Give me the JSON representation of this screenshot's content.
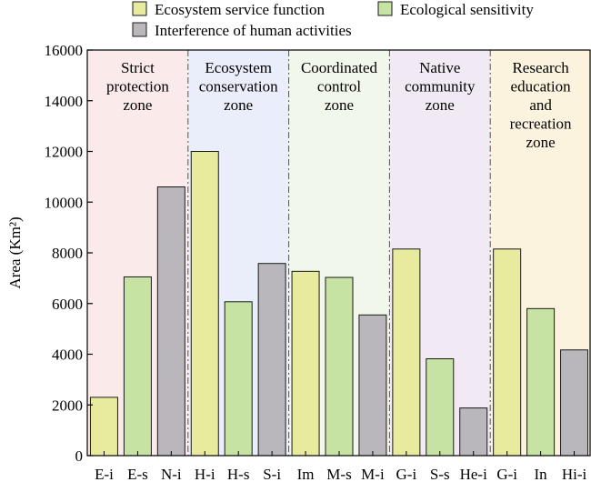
{
  "chart_data": {
    "type": "bar",
    "ylabel": "Area (Km²)",
    "ylim": [
      0,
      16000
    ],
    "yticks": [
      0,
      2000,
      4000,
      6000,
      8000,
      10000,
      12000,
      14000,
      16000
    ],
    "legend": {
      "placement": "top",
      "entries": [
        {
          "name": "Ecosystem service function",
          "color": "#e8ea9e"
        },
        {
          "name": "Ecological sensitivity",
          "color": "#c7e3a3"
        },
        {
          "name": "Interference of human activities",
          "color": "#b9b7bc"
        }
      ]
    },
    "zones": [
      {
        "label": [
          "Strict",
          "protection",
          "zone"
        ],
        "color": "#fbeaea"
      },
      {
        "label": [
          "Ecosystem",
          "conservation",
          "zone"
        ],
        "color": "#e9eefa"
      },
      {
        "label": [
          "Coordinated",
          "control",
          "zone"
        ],
        "color": "#f1f7ea"
      },
      {
        "label": [
          "Native",
          "community",
          "zone"
        ],
        "color": "#f1eaf5"
      },
      {
        "label": [
          "Research",
          "education",
          "and",
          "recreation",
          "zone"
        ],
        "color": "#fcf3df"
      }
    ],
    "bars": [
      {
        "category": "E-i",
        "value": 2300,
        "series": 0,
        "zone": 0
      },
      {
        "category": "E-s",
        "value": 7050,
        "series": 1,
        "zone": 0
      },
      {
        "category": "N-i",
        "value": 10600,
        "series": 2,
        "zone": 0
      },
      {
        "category": "H-i",
        "value": 12000,
        "series": 0,
        "zone": 1
      },
      {
        "category": "H-s",
        "value": 6070,
        "series": 1,
        "zone": 1
      },
      {
        "category": "S-i",
        "value": 7580,
        "series": 2,
        "zone": 1
      },
      {
        "category": "Im",
        "value": 7270,
        "series": 0,
        "zone": 2
      },
      {
        "category": "M-s",
        "value": 7030,
        "series": 1,
        "zone": 2
      },
      {
        "category": "M-i",
        "value": 5550,
        "series": 2,
        "zone": 2
      },
      {
        "category": "G-i",
        "value": 8150,
        "series": 0,
        "zone": 3
      },
      {
        "category": "S-s",
        "value": 3820,
        "series": 1,
        "zone": 3
      },
      {
        "category": "He-i",
        "value": 1880,
        "series": 2,
        "zone": 3
      },
      {
        "category": "G-i",
        "value": 8150,
        "series": 0,
        "zone": 4
      },
      {
        "category": "In",
        "value": 5800,
        "series": 1,
        "zone": 4
      },
      {
        "category": "Hi-i",
        "value": 4170,
        "series": 2,
        "zone": 4
      }
    ]
  }
}
